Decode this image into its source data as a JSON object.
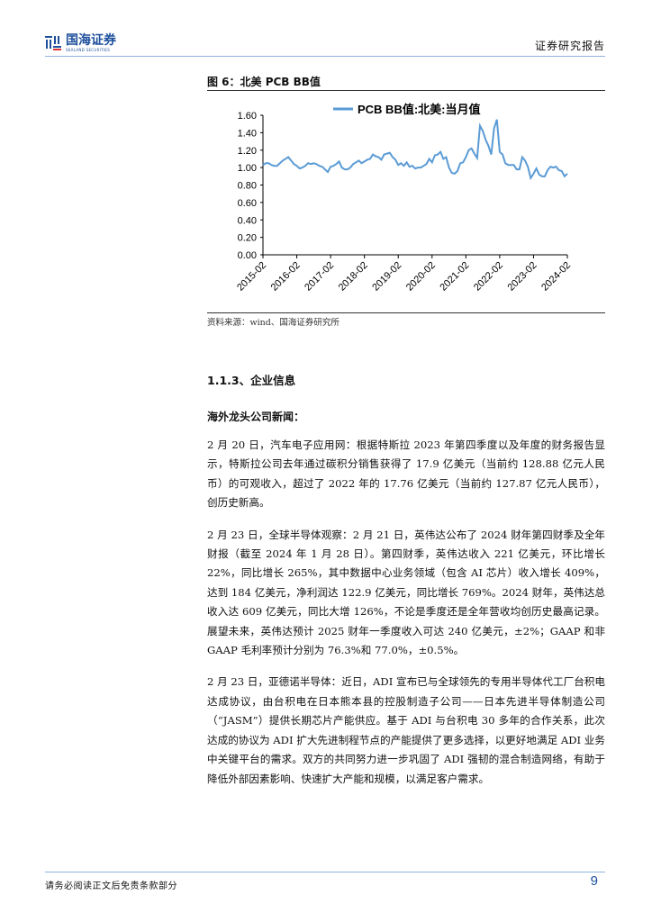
{
  "header": {
    "logo_cn": "国海证券",
    "logo_en": "SEALAND SECURITIES",
    "report_type": "证券研究报告"
  },
  "figure": {
    "title": "图 6：北美 PCB BB值",
    "source": "资料来源：wind、国海证券研究所"
  },
  "chart_data": {
    "type": "line",
    "title": "",
    "legend": "PCB BB值:北美:当月值",
    "legend_placement": "top",
    "series_color": "#5b9bd5",
    "frequency": "monthly",
    "x_range": [
      "2015-02",
      "2024-02"
    ],
    "x_ticks": [
      "2015-02",
      "2016-02",
      "2017-02",
      "2018-02",
      "2019-02",
      "2020-02",
      "2021-02",
      "2022-02",
      "2023-02",
      "2024-02"
    ],
    "y_ticks": [
      "0.00",
      "0.20",
      "0.40",
      "0.60",
      "0.80",
      "1.00",
      "1.20",
      "1.40",
      "1.60"
    ],
    "ylim": [
      0,
      1.6
    ],
    "grid": false,
    "series": [
      {
        "name": "PCB BB值:北美:当月值",
        "values": [
          1.03,
          1.05,
          1.05,
          1.03,
          1.02,
          1.02,
          1.05,
          1.08,
          1.1,
          1.12,
          1.08,
          1.04,
          1.02,
          0.99,
          1.0,
          1.02,
          1.05,
          1.04,
          1.05,
          1.04,
          1.02,
          1.01,
          0.98,
          0.95,
          1.01,
          1.02,
          1.04,
          1.07,
          1.0,
          0.98,
          0.98,
          1.0,
          1.04,
          1.06,
          1.08,
          1.05,
          1.07,
          1.09,
          1.1,
          1.15,
          1.13,
          1.12,
          1.09,
          1.15,
          1.16,
          1.17,
          1.12,
          1.09,
          1.03,
          1.05,
          1.02,
          1.06,
          1.01,
          1.02,
          0.99,
          1.0,
          1.0,
          1.02,
          1.04,
          1.1,
          1.06,
          1.14,
          1.15,
          1.18,
          1.1,
          1.12,
          1.0,
          0.94,
          0.93,
          0.96,
          1.05,
          1.06,
          1.12,
          1.2,
          1.22,
          1.16,
          1.11,
          1.48,
          1.42,
          1.32,
          1.25,
          1.15,
          1.45,
          1.55,
          1.18,
          1.15,
          1.05,
          1.03,
          1.03,
          1.03,
          0.98,
          0.98,
          1.12,
          1.08,
          1.01,
          0.88,
          0.93,
          0.99,
          0.92,
          0.9,
          0.9,
          0.97,
          1.01,
          1.0,
          1.01,
          0.97,
          0.96,
          0.9,
          0.93
        ]
      }
    ]
  },
  "section": {
    "heading": "1.1.3、企业信息",
    "subheading": "海外龙头公司新闻："
  },
  "paragraphs": [
    "2 月 20 日，汽车电子应用网：根据特斯拉 2023 年第四季度以及年度的财务报告显示，特斯拉公司去年通过碳积分销售获得了 17.9 亿美元（当前约 128.88 亿元人民币）的可观收入，超过了 2022 年的 17.76 亿美元（当前约 127.87 亿元人民币），创历史新高。",
    "2 月 23 日，全球半导体观察：2 月 21 日，英伟达公布了 2024 财年第四财季及全年财报（截至 2024 年 1 月 28 日）。第四财季，英伟达收入 221 亿美元，环比增长 22%，同比增长 265%，其中数据中心业务领域（包含 AI 芯片）收入增长 409%，达到 184 亿美元，净利润达 122.9 亿美元，同比增长 769%。2024 财年，英伟达总收入达 609 亿美元，同比大增 126%，不论是季度还是全年营收均创历史最高记录。展望未来，英伟达预计 2025 财年一季度收入可达 240 亿美元，±2%；GAAP 和非 GAAP 毛利率预计分别为 76.3%和 77.0%，±0.5%。",
    "2 月 23 日，亚德诺半导体：近日，ADI 宣布已与全球领先的专用半导体代工厂台积电达成协议，由台积电在日本熊本县的控股制造子公司——日本先进半导体制造公司（“JASM”）提供长期芯片产能供应。基于 ADI 与台积电 30 多年的合作关系，此次达成的协议为 ADI 扩大先进制程节点的产能提供了更多选择，以更好地满足 ADI 业务中关键平台的需求。双方的共同努力进一步巩固了 ADI 强韧的混合制造网络，有助于降低外部因素影响、快速扩大产能和规模，以满足客户需求。"
  ],
  "footer": {
    "disclaimer": "请务必阅读正文后免责条款部分",
    "page_number": "9"
  }
}
